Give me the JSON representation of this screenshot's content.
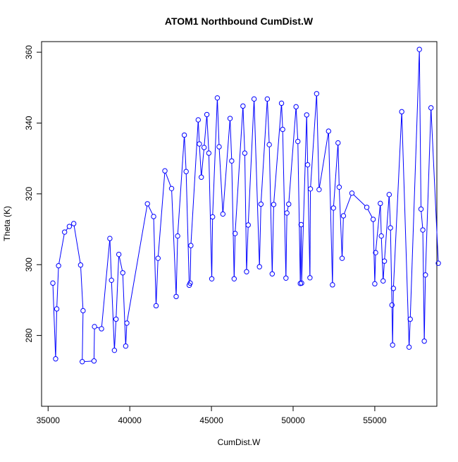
{
  "chart_data": {
    "type": "line",
    "title": "ATOM1 Northbound CumDist.W",
    "xlabel": "CumDist.W",
    "ylabel": "Theta (K)",
    "xlim": [
      34600,
      58800
    ],
    "ylim": [
      260,
      363
    ],
    "x_ticks": [
      35000,
      40000,
      45000,
      50000,
      55000
    ],
    "x_tick_labels": [
      "35000",
      "40000",
      "45000",
      "50000",
      "55000"
    ],
    "y_ticks": [
      280,
      300,
      320,
      340,
      360
    ],
    "y_tick_labels": [
      "280",
      "300",
      "320",
      "340",
      "360"
    ],
    "grid": false,
    "legend": "none",
    "markers": "open-circle",
    "colors": {
      "series": "#0000ff",
      "axes": "#000000"
    },
    "series": [
      {
        "points": [
          [
            35290,
            294.8
          ],
          [
            35460,
            273.4
          ],
          [
            35530,
            287.5
          ],
          [
            35640,
            299.7
          ],
          [
            36010,
            309.2
          ],
          [
            36300,
            310.8
          ],
          [
            36570,
            311.6
          ],
          [
            36990,
            299.9
          ],
          [
            37140,
            287.0
          ],
          [
            37090,
            272.6
          ],
          [
            37810,
            272.8
          ],
          [
            37840,
            282.5
          ],
          [
            38270,
            281.9
          ],
          [
            38780,
            307.4
          ],
          [
            38880,
            295.6
          ],
          [
            39060,
            275.8
          ],
          [
            39160,
            284.6
          ],
          [
            39330,
            302.9
          ],
          [
            39570,
            297.7
          ],
          [
            39750,
            277.0
          ],
          [
            39820,
            283.5
          ],
          [
            41080,
            317.2
          ],
          [
            41460,
            313.6
          ],
          [
            41610,
            288.4
          ],
          [
            41730,
            301.8
          ],
          [
            42150,
            326.5
          ],
          [
            42560,
            321.5
          ],
          [
            42840,
            291.0
          ],
          [
            42930,
            308.1
          ],
          [
            43340,
            336.6
          ],
          [
            43450,
            326.3
          ],
          [
            43640,
            294.2
          ],
          [
            43700,
            294.8
          ],
          [
            43740,
            305.4
          ],
          [
            44190,
            340.9
          ],
          [
            44260,
            334.1
          ],
          [
            44380,
            324.7
          ],
          [
            44550,
            333.1
          ],
          [
            44720,
            342.4
          ],
          [
            44840,
            331.5
          ],
          [
            45020,
            296.0
          ],
          [
            45070,
            313.5
          ],
          [
            45360,
            347.1
          ],
          [
            45470,
            333.3
          ],
          [
            45700,
            314.3
          ],
          [
            46140,
            341.3
          ],
          [
            46240,
            329.3
          ],
          [
            46390,
            296.0
          ],
          [
            46450,
            308.8
          ],
          [
            46930,
            344.8
          ],
          [
            47040,
            331.5
          ],
          [
            47150,
            298.0
          ],
          [
            47250,
            311.2
          ],
          [
            47610,
            346.8
          ],
          [
            47940,
            299.4
          ],
          [
            48030,
            317.1
          ],
          [
            48420,
            346.8
          ],
          [
            48540,
            333.9
          ],
          [
            48720,
            297.4
          ],
          [
            48810,
            317.0
          ],
          [
            49290,
            345.6
          ],
          [
            49360,
            338.2
          ],
          [
            49560,
            296.2
          ],
          [
            49620,
            314.6
          ],
          [
            49730,
            317.1
          ],
          [
            50180,
            344.6
          ],
          [
            50290,
            334.8
          ],
          [
            50440,
            294.7
          ],
          [
            50490,
            311.3
          ],
          [
            50520,
            294.8
          ],
          [
            50830,
            342.3
          ],
          [
            50890,
            328.2
          ],
          [
            51030,
            296.3
          ],
          [
            51060,
            321.4
          ],
          [
            51440,
            348.3
          ],
          [
            51590,
            321.2
          ],
          [
            52170,
            337.7
          ],
          [
            52410,
            294.3
          ],
          [
            52470,
            316.0
          ],
          [
            52750,
            334.4
          ],
          [
            52820,
            321.9
          ],
          [
            53000,
            301.8
          ],
          [
            53080,
            313.8
          ],
          [
            53600,
            320.2
          ],
          [
            54510,
            316.2
          ],
          [
            54900,
            312.8
          ],
          [
            55000,
            294.6
          ],
          [
            55050,
            303.4
          ],
          [
            55340,
            317.3
          ],
          [
            55400,
            308.1
          ],
          [
            55510,
            295.4
          ],
          [
            55590,
            301.0
          ],
          [
            55880,
            319.8
          ],
          [
            55960,
            310.4
          ],
          [
            56050,
            288.6
          ],
          [
            56090,
            277.3
          ],
          [
            56140,
            293.3
          ],
          [
            56650,
            343.2
          ],
          [
            57100,
            276.7
          ],
          [
            57170,
            284.6
          ],
          [
            57730,
            360.8
          ],
          [
            57830,
            315.7
          ],
          [
            57940,
            309.8
          ],
          [
            58030,
            278.4
          ],
          [
            58100,
            297.1
          ],
          [
            58440,
            344.3
          ],
          [
            58890,
            300.4
          ]
        ]
      }
    ]
  }
}
